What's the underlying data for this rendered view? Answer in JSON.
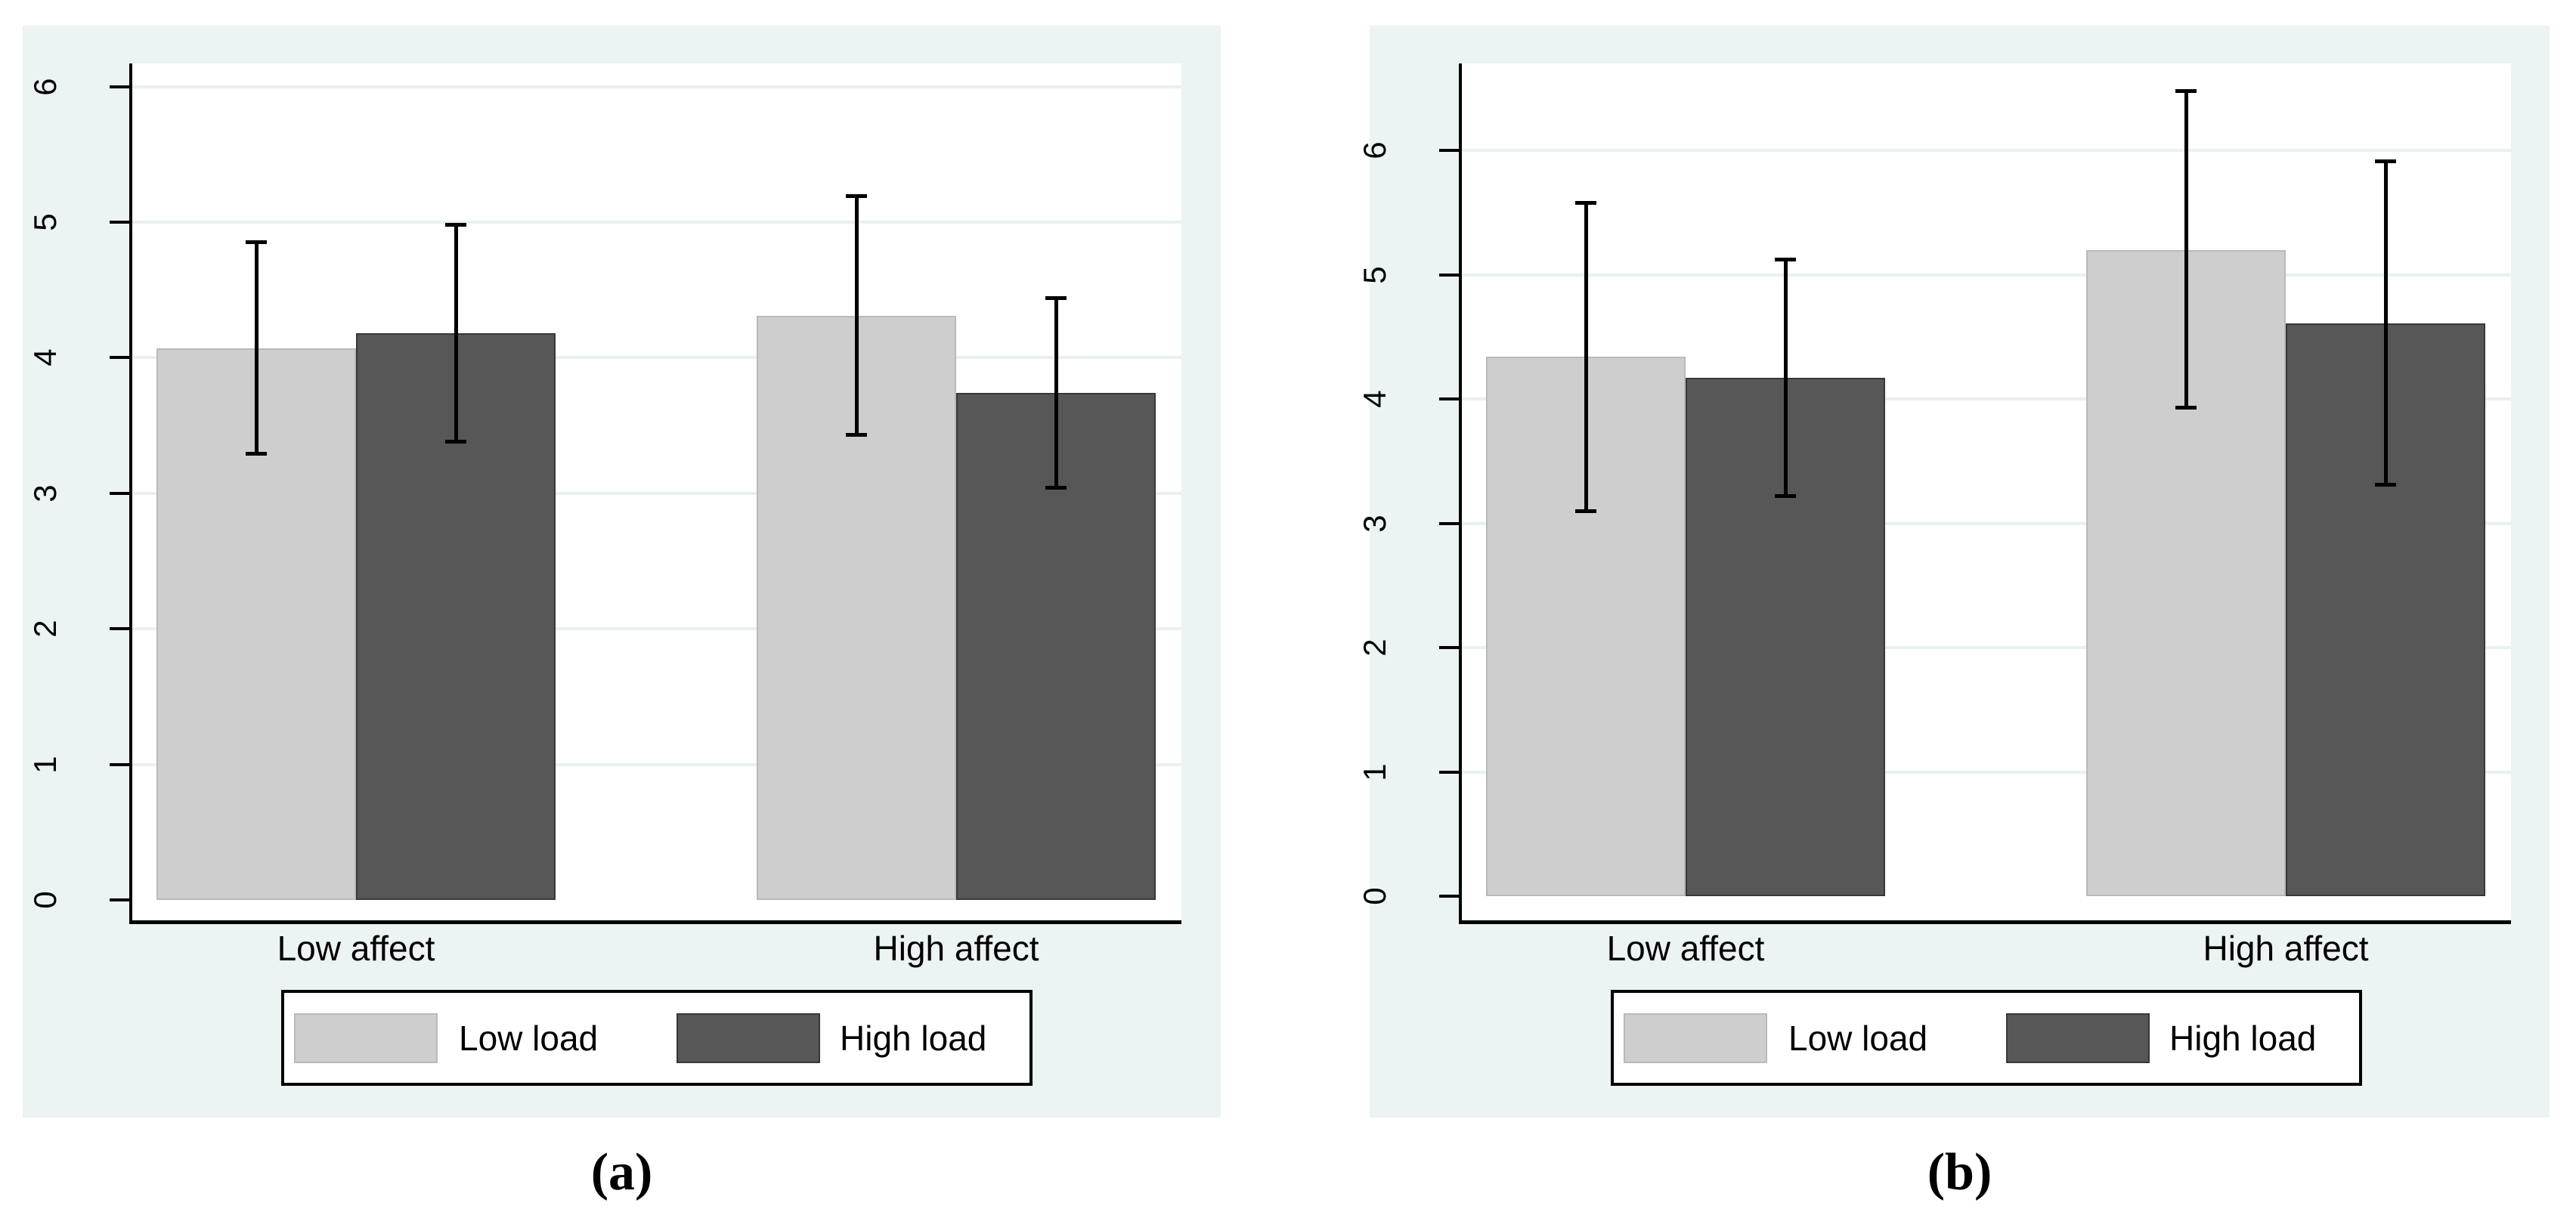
{
  "figure": {
    "panels": [
      {
        "caption": "(a)"
      },
      {
        "caption": "(b)"
      }
    ]
  },
  "colors": {
    "page_background": "#ffffff",
    "panel_background": "#ebf3f3",
    "plot_background": "#ffffff",
    "gridline": "#e7f1f1",
    "axis": "#000000",
    "error_bar": "#000000",
    "legend_background": "#ffffff",
    "legend_border": "#000000",
    "low_load_fill": "#cecece",
    "low_load_border": "#b9b9b9",
    "high_load_fill": "#575757",
    "high_load_border": "#383838"
  },
  "chart_data": [
    {
      "type": "bar",
      "title": "",
      "xlabel": "",
      "ylabel": "",
      "categories": [
        "Low affect",
        "High affect"
      ],
      "series": [
        {
          "name": "Low load",
          "fill": "#cecece",
          "border": "#b9b9b9",
          "values": [
            4.07,
            4.31
          ],
          "ci_low": [
            3.29,
            3.43
          ],
          "ci_high": [
            4.85,
            5.19
          ]
        },
        {
          "name": "High load",
          "fill": "#575757",
          "border": "#383838",
          "values": [
            4.18,
            3.74
          ],
          "ci_low": [
            3.38,
            3.04
          ],
          "ci_high": [
            4.98,
            4.44
          ]
        }
      ],
      "yticks": [
        0,
        1,
        2,
        3,
        4,
        5,
        6
      ],
      "ylim": [
        0,
        6.17
      ],
      "grid": true,
      "error_bars": true,
      "legend_position": "bottom",
      "legend_entries": [
        "Low load",
        "High load"
      ]
    },
    {
      "type": "bar",
      "title": "",
      "xlabel": "",
      "ylabel": "",
      "categories": [
        "Low affect",
        "High affect"
      ],
      "series": [
        {
          "name": "Low load",
          "fill": "#cecece",
          "border": "#b9b9b9",
          "values": [
            4.34,
            5.2
          ],
          "ci_low": [
            3.1,
            3.93
          ],
          "ci_high": [
            5.58,
            6.48
          ]
        },
        {
          "name": "High load",
          "fill": "#575757",
          "border": "#383838",
          "values": [
            4.17,
            4.61
          ],
          "ci_low": [
            3.22,
            3.31
          ],
          "ci_high": [
            5.12,
            5.91
          ]
        }
      ],
      "yticks": [
        0,
        1,
        2,
        3,
        4,
        5,
        6
      ],
      "ylim": [
        0,
        6.7
      ],
      "grid": true,
      "error_bars": true,
      "legend_position": "bottom",
      "legend_entries": [
        "Low load",
        "High load"
      ]
    }
  ]
}
